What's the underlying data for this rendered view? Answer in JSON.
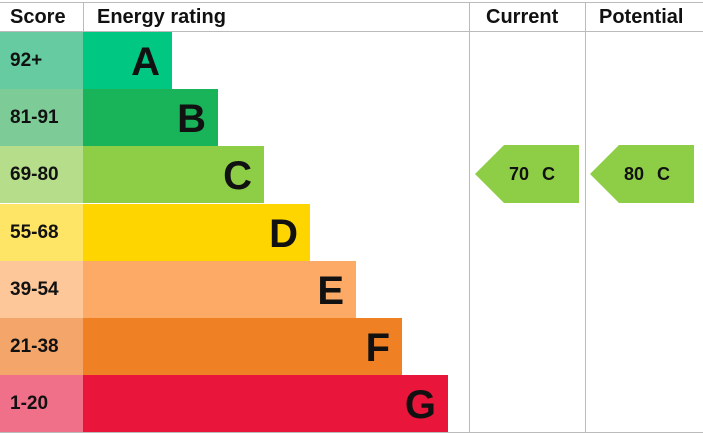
{
  "chart_data": {
    "type": "bar",
    "headers": {
      "score": "Score",
      "rating": "Energy rating",
      "current": "Current",
      "potential": "Potential"
    },
    "bands": [
      {
        "letter": "A",
        "range": "92+",
        "color": "#00c781",
        "score_color": "#66cba0"
      },
      {
        "letter": "B",
        "range": "81-91",
        "color": "#19b459",
        "score_color": "#7dcc98"
      },
      {
        "letter": "C",
        "range": "69-80",
        "color": "#8dce46",
        "score_color": "#b5dd8a"
      },
      {
        "letter": "D",
        "range": "55-68",
        "color": "#ffd500",
        "score_color": "#ffe566"
      },
      {
        "letter": "E",
        "range": "39-54",
        "color": "#fcaa65",
        "score_color": "#fdc79a"
      },
      {
        "letter": "F",
        "range": "21-38",
        "color": "#ef8023",
        "score_color": "#f4a66a"
      },
      {
        "letter": "G",
        "range": "1-20",
        "color": "#e9153b",
        "score_color": "#f07089"
      }
    ],
    "current": {
      "value": 70,
      "band": "C",
      "label": "70 C"
    },
    "potential": {
      "value": 80,
      "band": "C",
      "label": "80 C"
    }
  }
}
